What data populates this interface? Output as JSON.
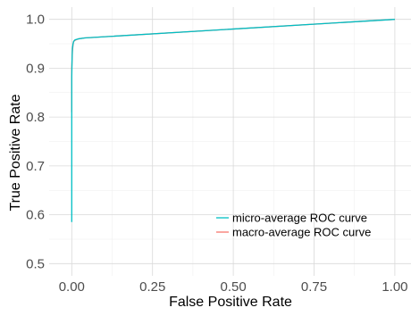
{
  "chart_data": {
    "type": "line",
    "title": "",
    "xlabel": "False Positive Rate",
    "ylabel": "True Positive Rate",
    "xlim": [
      -0.07,
      1.05
    ],
    "ylim": [
      0.475,
      1.025
    ],
    "x_ticks": [
      0,
      0.25,
      0.5,
      0.75,
      1
    ],
    "x_tick_labels": [
      "0.00",
      "0.25",
      "0.50",
      "0.75",
      "1.00"
    ],
    "y_ticks": [
      0.5,
      0.6,
      0.7,
      0.8,
      0.9,
      1.0
    ],
    "y_tick_labels": [
      "0.5",
      "0.6",
      "0.7",
      "0.8",
      "0.9",
      "1.0"
    ],
    "grid": true,
    "legend_position": "bottom-right",
    "series": [
      {
        "name": "micro-average ROC curve",
        "color": "#00bfc4",
        "x": [
          0,
          0,
          0,
          0.001,
          0.002,
          0.004,
          0.006,
          0.01,
          0.02,
          0.04,
          1.0
        ],
        "y": [
          0.585,
          0.81,
          0.88,
          0.92,
          0.94,
          0.95,
          0.955,
          0.958,
          0.96,
          0.962,
          1.0
        ]
      },
      {
        "name": "macro-average ROC curve",
        "color": "#f8766d",
        "x": [
          0,
          0,
          0.002,
          0.004,
          0.006,
          0.01,
          0.02,
          0.04,
          1.0
        ],
        "y": [
          0.81,
          0.9,
          0.935,
          0.948,
          0.955,
          0.957,
          0.96,
          0.962,
          1.0
        ]
      }
    ]
  }
}
